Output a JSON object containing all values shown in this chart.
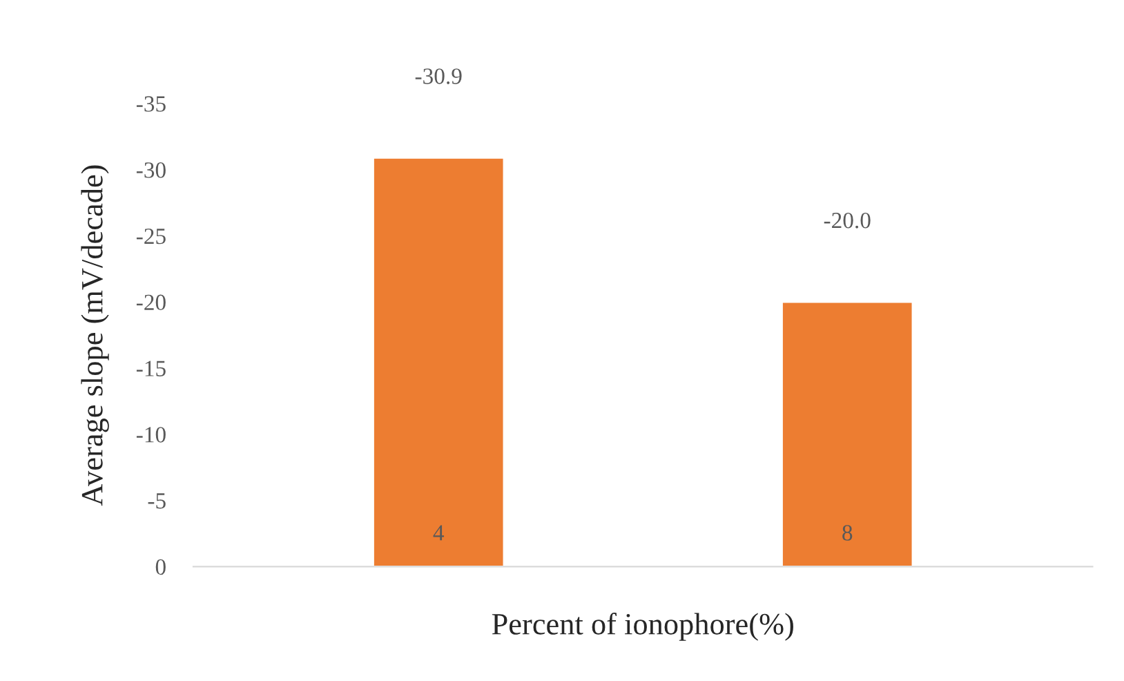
{
  "chart_data": {
    "type": "bar",
    "xlabel": "Percent of ionophore(%)",
    "ylabel": "Average slope (mV/decade)",
    "categories": [
      "4",
      "8"
    ],
    "series": [
      {
        "color": "#ed7d31",
        "values": [
          -30.9,
          -20.0
        ],
        "value_labels": [
          "-30.9",
          "-20.0"
        ]
      }
    ],
    "ylim": [
      0,
      -35
    ],
    "yticks": [
      0,
      -5,
      -10,
      -15,
      -20,
      -25,
      -30,
      -35
    ],
    "grid": false
  }
}
